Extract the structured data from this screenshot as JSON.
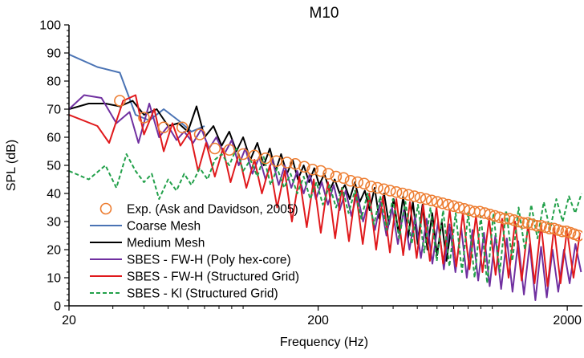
{
  "chart_data": {
    "type": "line",
    "title": "M10",
    "xlabel": "Frequency (Hz)",
    "ylabel": "SPL (dB)",
    "xscale": "log",
    "xlim": [
      20,
      2300
    ],
    "ylim": [
      0,
      100
    ],
    "xticks": [
      20,
      200,
      2000
    ],
    "xtick_labels": [
      "20",
      "200",
      "2000"
    ],
    "yticks": [
      0,
      10,
      20,
      30,
      40,
      50,
      60,
      70,
      80,
      90,
      100
    ],
    "ytick_labels": [
      "0",
      "10",
      "20",
      "30",
      "40",
      "50",
      "60",
      "70",
      "80",
      "90",
      "100"
    ],
    "grid": false,
    "legend_position": "bottom-left",
    "series": [
      {
        "name": "Exp. (Ask and Davidson, 2005)",
        "style": "markers",
        "color": "#ed7d31",
        "x": [
          32,
          40,
          48,
          57,
          67,
          77,
          88,
          100,
          111,
          123,
          136,
          150,
          162,
          176,
          190,
          205,
          220,
          236,
          253,
          270,
          288,
          306,
          326,
          346,
          367,
          389,
          412,
          436,
          461,
          487,
          514,
          542,
          571,
          601,
          632,
          665,
          700,
          735,
          772,
          810,
          850,
          891,
          934,
          978,
          1024,
          1071,
          1120,
          1170,
          1222,
          1276,
          1331,
          1388,
          1447,
          1508,
          1570,
          1634,
          1700,
          1768,
          1837,
          1909,
          1982,
          2058,
          2135,
          2215
        ],
        "y": [
          73,
          67,
          63.5,
          63.5,
          61,
          56,
          55.5,
          54,
          53.5,
          52.5,
          51.5,
          51,
          50.5,
          49.5,
          48.5,
          48,
          47,
          46,
          45.5,
          44.5,
          44,
          43.5,
          42.5,
          42,
          41.5,
          41,
          40.5,
          40,
          39.5,
          39,
          38.5,
          38,
          37.5,
          37,
          36.5,
          36,
          35.5,
          35,
          34.5,
          34,
          33.5,
          33.5,
          33,
          32.5,
          32,
          31.5,
          31,
          31,
          30.5,
          30,
          29.5,
          29.5,
          29,
          28.5,
          28.5,
          28,
          27.5,
          27.5,
          27,
          26.5,
          26.5,
          26,
          25.5,
          25
        ]
      },
      {
        "name": "Coarse Mesh",
        "style": "solid",
        "color": "#4a73b4",
        "x": [
          20,
          26,
          32,
          37,
          42,
          48,
          55,
          62,
          70
        ],
        "y": [
          89.5,
          85,
          83,
          68,
          66,
          70,
          66,
          62,
          64
        ]
      },
      {
        "name": "Medium Mesh",
        "style": "solid",
        "color": "#000000",
        "x": [
          20,
          24,
          28,
          32,
          36,
          40,
          45,
          50,
          55,
          60,
          65,
          70,
          76,
          82,
          88,
          94,
          100,
          107,
          114,
          121,
          128,
          135,
          142,
          150,
          158,
          166,
          175,
          184,
          193,
          202,
          212,
          222,
          233,
          244,
          256,
          268,
          281,
          294,
          308,
          322,
          337,
          352,
          368,
          385,
          402,
          420,
          439,
          459,
          480,
          502,
          525,
          549,
          574,
          600,
          627,
          655,
          684
        ],
        "y": [
          70,
          72,
          72,
          71,
          73,
          68,
          70,
          64,
          65,
          62,
          71,
          60,
          64,
          57,
          62,
          55,
          60,
          52,
          58,
          50,
          56,
          48,
          54,
          47,
          52,
          45,
          50,
          44,
          49,
          43,
          47,
          41,
          45,
          40,
          43,
          38,
          44,
          37,
          41,
          34,
          42,
          31,
          40,
          29,
          38,
          26,
          39,
          24,
          37,
          22,
          36,
          20,
          33,
          18,
          30,
          16,
          28
        ]
      },
      {
        "name": "SBES - FW-H (Poly hex-core)",
        "style": "solid",
        "color": "#7030a0",
        "x": [
          20,
          23,
          27,
          31,
          35,
          38,
          42,
          46,
          50,
          54,
          58,
          63,
          68,
          73,
          78,
          84,
          90,
          96,
          102,
          109,
          116,
          123,
          131,
          139,
          147,
          156,
          165,
          175,
          185,
          196,
          207,
          219,
          231,
          244,
          258,
          272,
          287,
          303,
          320,
          338,
          356,
          376,
          396,
          418,
          441,
          465,
          490,
          517,
          545,
          575,
          606,
          639,
          674,
          711,
          750,
          790,
          833,
          878,
          926,
          976,
          1029,
          1085,
          1144,
          1206,
          1271,
          1340,
          1413,
          1489,
          1570,
          1655,
          1745,
          1840,
          1940,
          2045,
          2156,
          2273
        ],
        "y": [
          70,
          75,
          74,
          65,
          69,
          58,
          72,
          60,
          64,
          59,
          62,
          58,
          63,
          56,
          60,
          54,
          59,
          50,
          56,
          47,
          53,
          45,
          52,
          43,
          50,
          42,
          48,
          40,
          47,
          38,
          44,
          36,
          43,
          34,
          41,
          32,
          40,
          30,
          38,
          27,
          37,
          25,
          35,
          22,
          34,
          20,
          32,
          17,
          31,
          15,
          30,
          13,
          29,
          12,
          28,
          10,
          27,
          9,
          26,
          7,
          25,
          6,
          24,
          5,
          23,
          4,
          22,
          2,
          21,
          3,
          20,
          5,
          20,
          8,
          22,
          12
        ]
      },
      {
        "name": "SBES - FW-H (Structured Grid)",
        "style": "solid",
        "color": "#e0191c",
        "x": [
          20,
          26,
          29,
          33,
          37,
          40,
          44,
          48,
          52,
          56,
          61,
          66,
          71,
          77,
          83,
          89,
          96,
          103,
          111,
          119,
          128,
          137,
          147,
          157,
          168,
          180,
          192,
          205,
          219,
          234,
          249,
          266,
          283,
          302,
          321,
          342,
          364,
          388,
          412,
          439,
          467,
          497,
          528,
          562,
          597,
          635,
          675,
          717,
          762,
          810,
          860,
          914,
          971,
          1031,
          1095,
          1163,
          1235,
          1312,
          1393,
          1479,
          1570,
          1667,
          1770,
          1879,
          1995,
          2118,
          2249
        ],
        "y": [
          68,
          64,
          58,
          73,
          75,
          61,
          70,
          55,
          65,
          57,
          62,
          48,
          58,
          46,
          56,
          44,
          54,
          42,
          52,
          40,
          50,
          35,
          48,
          30,
          46,
          28,
          45,
          26,
          44,
          24,
          42,
          23,
          41,
          22,
          40,
          20,
          39,
          19,
          38,
          18,
          37,
          17,
          36,
          16,
          35,
          15,
          34,
          14,
          33,
          13,
          32,
          12,
          31,
          11,
          31,
          10,
          30,
          9,
          29,
          8,
          29,
          7,
          28,
          8,
          27,
          10,
          26
        ]
      },
      {
        "name": "SBES - Kl (Structured Grid)",
        "style": "dashed",
        "color": "#22a04a",
        "x": [
          20,
          24,
          28,
          31,
          34,
          37,
          40,
          43,
          46,
          50,
          54,
          58,
          62,
          67,
          72,
          77,
          82,
          88,
          94,
          100,
          107,
          114,
          121,
          129,
          137,
          146,
          155,
          165,
          175,
          186,
          197,
          209,
          222,
          236,
          250,
          265,
          281,
          298,
          316,
          335,
          355,
          376,
          399,
          423,
          448,
          475,
          503,
          533,
          565,
          599,
          635,
          673,
          713,
          756,
          801,
          849,
          900,
          954,
          1011,
          1072,
          1136,
          1204,
          1276,
          1352,
          1433,
          1519,
          1610,
          1706,
          1808,
          1916,
          2031,
          2152,
          2281
        ],
        "y": [
          48,
          45,
          50,
          42,
          54,
          48,
          44,
          47,
          38,
          45,
          41,
          47,
          43,
          49,
          45,
          52,
          54,
          50,
          56,
          48,
          52,
          46,
          53,
          43,
          49,
          42,
          47,
          40,
          46,
          38,
          44,
          36,
          43,
          35,
          42,
          33,
          41,
          31,
          40,
          29,
          39,
          27,
          38,
          24,
          37,
          22,
          36,
          19,
          35,
          16,
          34,
          14,
          33,
          12,
          33,
          10,
          32,
          8,
          33,
          12,
          34,
          16,
          35,
          20,
          36,
          24,
          37,
          27,
          38,
          30,
          39,
          33,
          40
        ]
      }
    ]
  }
}
